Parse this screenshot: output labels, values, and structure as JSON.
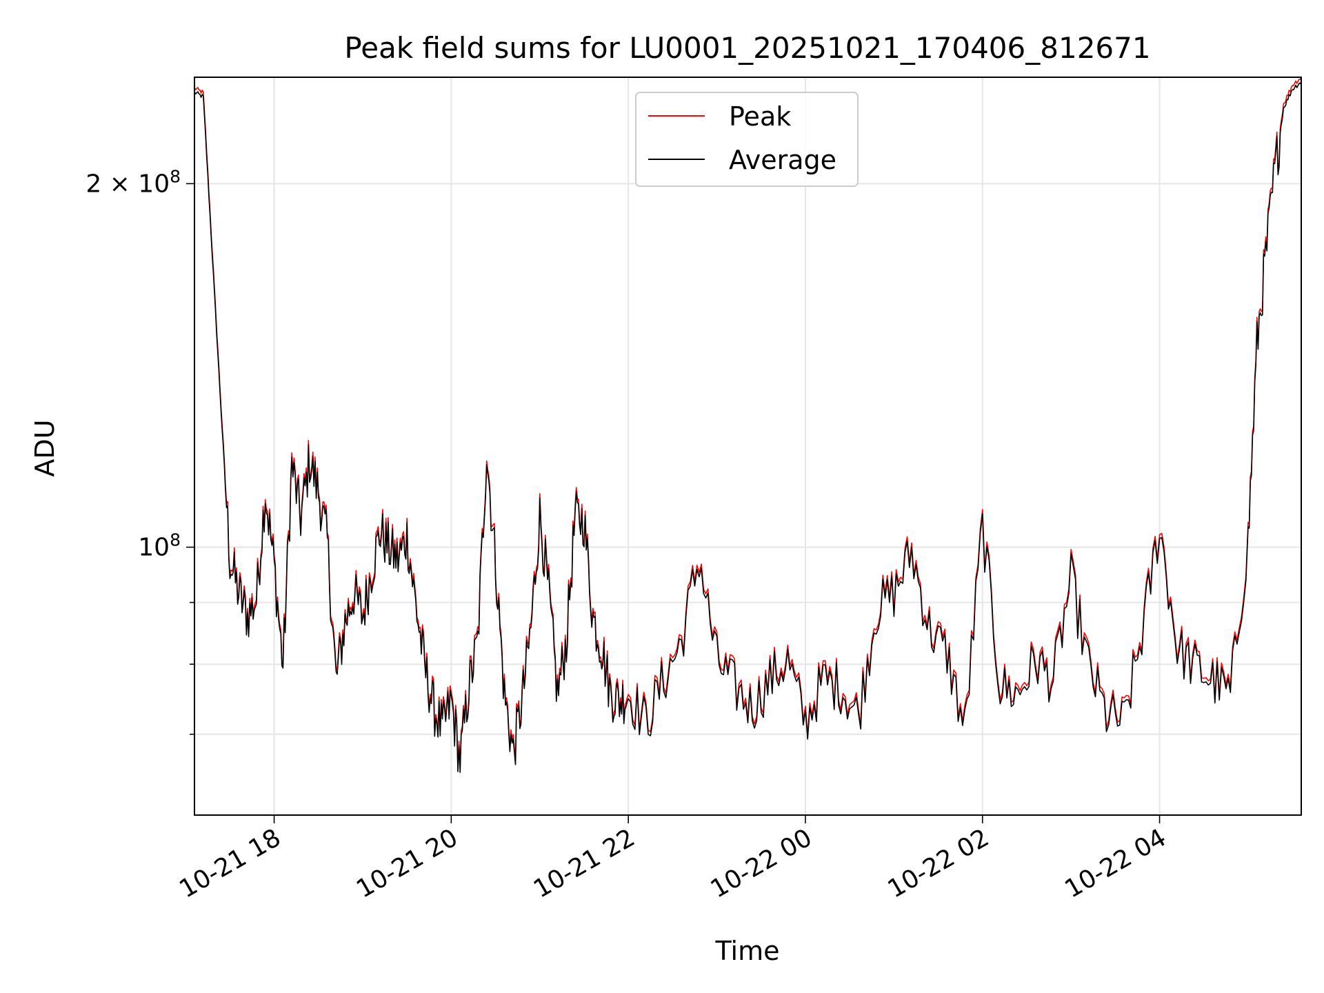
{
  "chart_data": {
    "type": "line",
    "title": "Peak field sums for LU0001_20251021_170406_812671",
    "xlabel": "Time",
    "ylabel": "ADU",
    "yscale": "log",
    "ylim": [
      60000000,
      245000000
    ],
    "xlim_hours": [
      17.1,
      5.6
    ],
    "grid": true,
    "legend_position": "upper center",
    "x_ticks": [
      {
        "label": "10-21 18",
        "hour": 18
      },
      {
        "label": "10-21 20",
        "hour": 20
      },
      {
        "label": "10-21 22",
        "hour": 22
      },
      {
        "label": "10-22 00",
        "hour": 24
      },
      {
        "label": "10-22 02",
        "hour": 26
      },
      {
        "label": "10-22 04",
        "hour": 28
      }
    ],
    "y_major_ticks": [
      {
        "label_base": "10",
        "label_exp": "8",
        "value": 100000000
      },
      {
        "label_base": "2 × 10",
        "label_exp": "8",
        "value": 200000000
      }
    ],
    "y_minor_ticks": [
      70000000,
      80000000,
      90000000
    ],
    "x": [
      17.1,
      17.2,
      17.3,
      17.4,
      17.5,
      17.6,
      17.7,
      17.8,
      17.9,
      18.0,
      18.1,
      18.2,
      18.3,
      18.4,
      18.5,
      18.6,
      18.7,
      18.8,
      18.9,
      19.0,
      19.1,
      19.2,
      19.3,
      19.4,
      19.5,
      19.6,
      19.7,
      19.8,
      19.9,
      20.0,
      20.1,
      20.2,
      20.3,
      20.4,
      20.5,
      20.6,
      20.7,
      20.8,
      20.9,
      21.0,
      21.1,
      21.2,
      21.3,
      21.4,
      21.5,
      21.6,
      21.7,
      21.8,
      21.9,
      22.0,
      22.2,
      22.4,
      22.6,
      22.8,
      23.0,
      23.2,
      23.4,
      23.6,
      23.8,
      24.0,
      24.2,
      24.4,
      24.6,
      24.8,
      25.0,
      25.2,
      25.4,
      25.6,
      25.8,
      26.0,
      26.2,
      26.4,
      26.6,
      26.8,
      27.0,
      27.2,
      27.4,
      27.6,
      27.8,
      28.0,
      28.2,
      28.4,
      28.6,
      28.8,
      29.0,
      29.1,
      29.2,
      29.3,
      29.4,
      29.5,
      29.6
    ],
    "series": [
      {
        "name": "Peak",
        "color": "#ff0000",
        "values": [
          238000000,
          236000000,
          175000000,
          130000000,
          98000000,
          92000000,
          88000000,
          91000000,
          112000000,
          97000000,
          80000000,
          118000000,
          106000000,
          119000000,
          112000000,
          102000000,
          78000000,
          87000000,
          92000000,
          88000000,
          96000000,
          104000000,
          100000000,
          98000000,
          103000000,
          90000000,
          80000000,
          74000000,
          71000000,
          75000000,
          67000000,
          77000000,
          84000000,
          122000000,
          98000000,
          76000000,
          68000000,
          75000000,
          86000000,
          107000000,
          92000000,
          76000000,
          84000000,
          107000000,
          106000000,
          88000000,
          83000000,
          76000000,
          75000000,
          76000000,
          72000000,
          78000000,
          84000000,
          99000000,
          81000000,
          77000000,
          74000000,
          78000000,
          81000000,
          72000000,
          78000000,
          77000000,
          73000000,
          89000000,
          92000000,
          100000000,
          86000000,
          82000000,
          71000000,
          105000000,
          77000000,
          76000000,
          81000000,
          78000000,
          95000000,
          80000000,
          73000000,
          72000000,
          85000000,
          105000000,
          83000000,
          80000000,
          78000000,
          76000000,
          102000000,
          148000000,
          175000000,
          205000000,
          232000000,
          240000000,
          243000000
        ]
      },
      {
        "name": "Average",
        "color": "#000000",
        "values": [
          238000000,
          236000000,
          175000000,
          130000000,
          97500000,
          91500000,
          87500000,
          90500000,
          111000000,
          96500000,
          79500000,
          117000000,
          105500000,
          118000000,
          111000000,
          101000000,
          77500000,
          86500000,
          91500000,
          87500000,
          95500000,
          103000000,
          99500000,
          97500000,
          102000000,
          89500000,
          79500000,
          73500000,
          70500000,
          74500000,
          66500000,
          76500000,
          83500000,
          120000000,
          97000000,
          75500000,
          67500000,
          74500000,
          85500000,
          106000000,
          91500000,
          75500000,
          83500000,
          106000000,
          105000000,
          87500000,
          82500000,
          75500000,
          74500000,
          75500000,
          71500000,
          77500000,
          83500000,
          98000000,
          80500000,
          76500000,
          73500000,
          77500000,
          80500000,
          71500000,
          77500000,
          76500000,
          72500000,
          88500000,
          91500000,
          99000000,
          85500000,
          81500000,
          70500000,
          104000000,
          76500000,
          75500000,
          80500000,
          77500000,
          94000000,
          79500000,
          72500000,
          71500000,
          84500000,
          104000000,
          82500000,
          79500000,
          77500000,
          75500000,
          101000000,
          147000000,
          174000000,
          204000000,
          231000000,
          239500000,
          243000000
        ]
      }
    ]
  }
}
